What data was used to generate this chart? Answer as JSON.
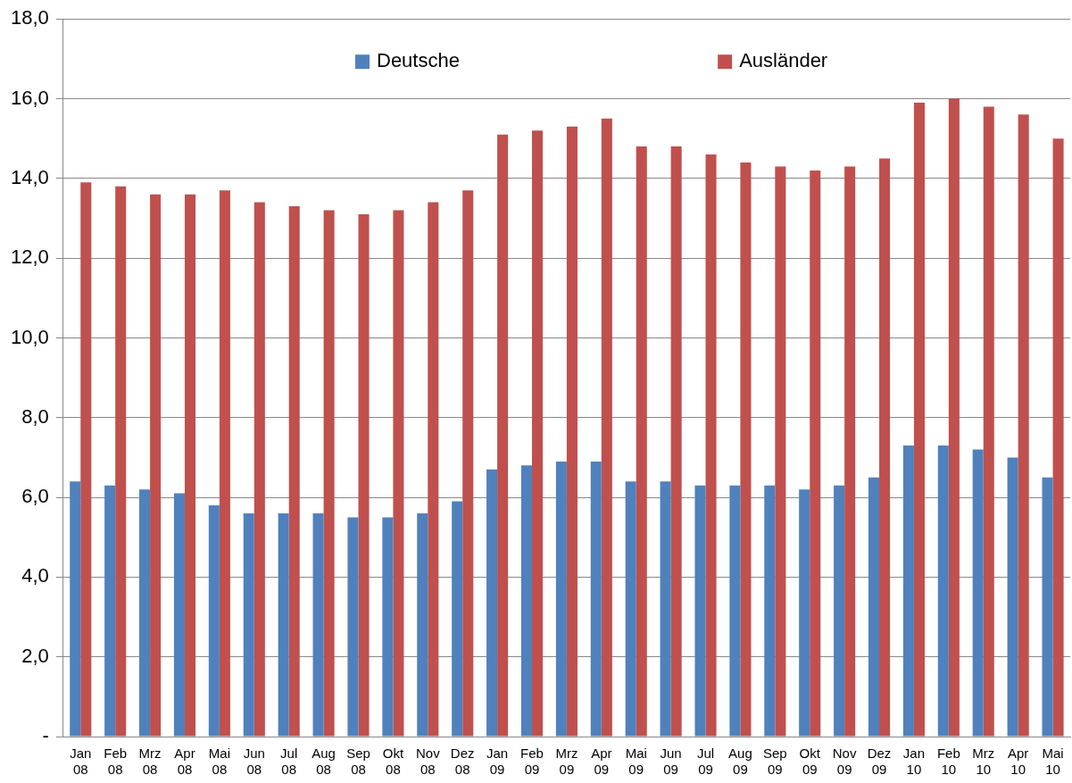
{
  "chart_data": {
    "type": "bar",
    "categories": [
      "Jan 08",
      "Feb 08",
      "Mrz 08",
      "Apr 08",
      "Mai 08",
      "Jun 08",
      "Jul 08",
      "Aug 08",
      "Sep 08",
      "Okt 08",
      "Nov 08",
      "Dez 08",
      "Jan 09",
      "Feb 09",
      "Mrz 09",
      "Apr 09",
      "Mai 09",
      "Jun 09",
      "Jul 09",
      "Aug 09",
      "Sep 09",
      "Okt 09",
      "Nov 09",
      "Dez 09",
      "Jan 10",
      "Feb 10",
      "Mrz 10",
      "Apr 10",
      "Mai 10"
    ],
    "series": [
      {
        "name": "Deutsche",
        "color": "#4f81bd",
        "values": [
          6.4,
          6.3,
          6.2,
          6.1,
          5.8,
          5.6,
          5.6,
          5.6,
          5.5,
          5.5,
          5.6,
          5.9,
          6.7,
          6.8,
          6.9,
          6.9,
          6.4,
          6.4,
          6.3,
          6.3,
          6.3,
          6.2,
          6.3,
          6.5,
          7.3,
          7.3,
          7.2,
          7.0,
          6.5
        ]
      },
      {
        "name": "Ausländer",
        "color": "#c0504d",
        "values": [
          13.9,
          13.8,
          13.6,
          13.6,
          13.7,
          13.4,
          13.3,
          13.2,
          13.1,
          13.2,
          13.4,
          13.7,
          15.1,
          15.2,
          15.3,
          15.5,
          14.8,
          14.8,
          14.6,
          14.4,
          14.3,
          14.2,
          14.3,
          14.5,
          15.9,
          16.0,
          15.8,
          15.6,
          15.0
        ]
      }
    ],
    "ylim": [
      0,
      18
    ],
    "yticks": [
      {
        "value": 0,
        "label": "-"
      },
      {
        "value": 2,
        "label": "2,0"
      },
      {
        "value": 4,
        "label": "4,0"
      },
      {
        "value": 6,
        "label": "6,0"
      },
      {
        "value": 8,
        "label": "8,0"
      },
      {
        "value": 10,
        "label": "10,0"
      },
      {
        "value": 12,
        "label": "12,0"
      },
      {
        "value": 14,
        "label": "14,0"
      },
      {
        "value": 16,
        "label": "16,0"
      },
      {
        "value": 18,
        "label": "18,0"
      }
    ],
    "grid": "y",
    "legend": "top"
  }
}
